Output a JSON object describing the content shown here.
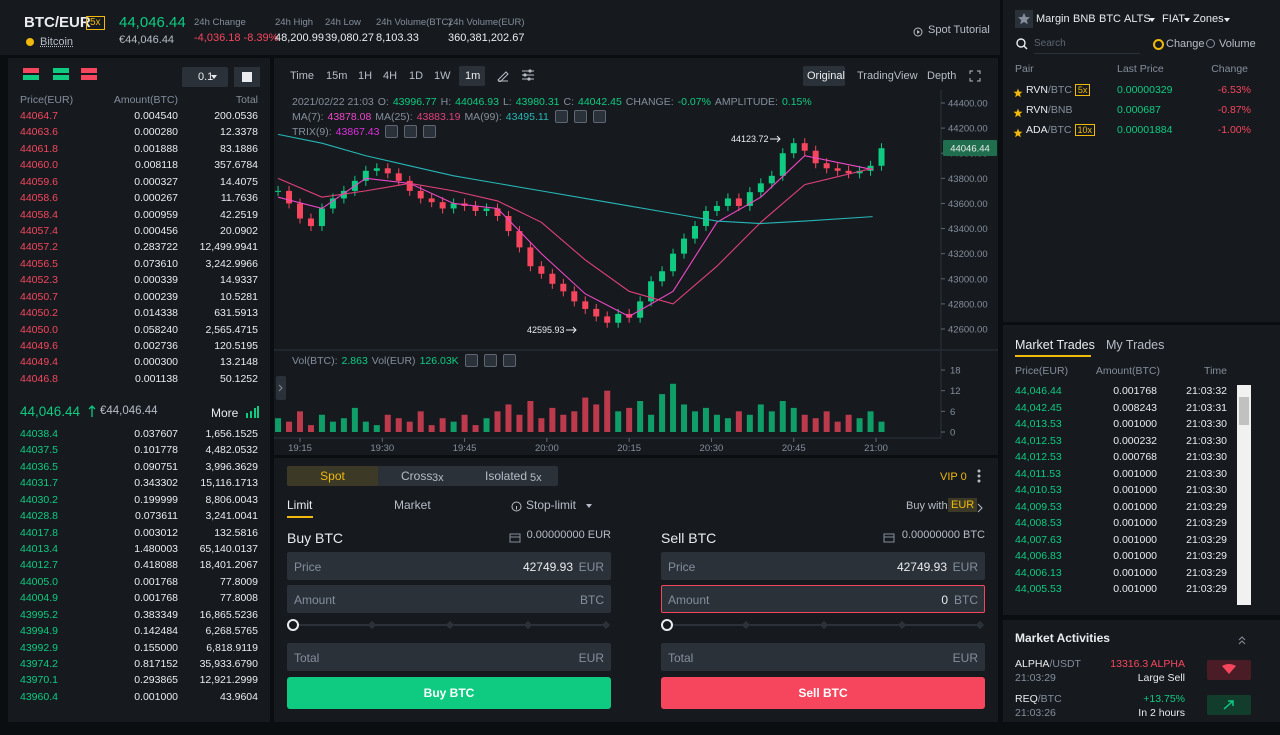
{
  "header": {
    "symbol": "BTC/EUR",
    "leverage": "5x",
    "name": "Bitcoin",
    "price": "44,046.44",
    "price_eur": "€44,046.44",
    "stats": [
      {
        "label": "24h Change",
        "value": "-4,036.18 -8.39%"
      },
      {
        "label": "24h High",
        "value": "48,200.99"
      },
      {
        "label": "24h Low",
        "value": "39,080.27"
      },
      {
        "label": "24h Volume(BTC)",
        "value": "8,103.33"
      },
      {
        "label": "24h Volume(EUR)",
        "value": "360,381,202.67"
      }
    ],
    "tutorial": "Spot Tutorial"
  },
  "orderbook": {
    "precision": "0.1",
    "columns": [
      "Price(EUR)",
      "Amount(BTC)",
      "Total"
    ],
    "asks": [
      [
        "44064.7",
        "0.004540",
        "200.0536"
      ],
      [
        "44063.6",
        "0.000280",
        "12.3378"
      ],
      [
        "44061.8",
        "0.001888",
        "83.1886"
      ],
      [
        "44060.0",
        "0.008118",
        "357.6784"
      ],
      [
        "44059.6",
        "0.000327",
        "14.4075"
      ],
      [
        "44058.6",
        "0.000267",
        "11.7636"
      ],
      [
        "44058.4",
        "0.000959",
        "42.2519"
      ],
      [
        "44057.4",
        "0.000456",
        "20.0902"
      ],
      [
        "44057.2",
        "0.283722",
        "12,499.9941"
      ],
      [
        "44056.5",
        "0.073610",
        "3,242.9966"
      ],
      [
        "44052.3",
        "0.000339",
        "14.9337"
      ],
      [
        "44050.7",
        "0.000239",
        "10.5281"
      ],
      [
        "44050.2",
        "0.014338",
        "631.5913"
      ],
      [
        "44050.0",
        "0.058240",
        "2,565.4715"
      ],
      [
        "44049.6",
        "0.002736",
        "120.5195"
      ],
      [
        "44049.4",
        "0.000300",
        "13.2148"
      ],
      [
        "44046.8",
        "0.001138",
        "50.1252"
      ]
    ],
    "mid_price": "44,046.44",
    "mid_eur": "€44,046.44",
    "more": "More",
    "bids": [
      [
        "44038.4",
        "0.037607",
        "1,656.1525"
      ],
      [
        "44037.5",
        "0.101778",
        "4,482.0532"
      ],
      [
        "44036.5",
        "0.090751",
        "3,996.3629"
      ],
      [
        "44031.7",
        "0.343302",
        "15,116.1713"
      ],
      [
        "44030.2",
        "0.199999",
        "8,806.0043"
      ],
      [
        "44028.8",
        "0.073611",
        "3,241.0041"
      ],
      [
        "44017.8",
        "0.003012",
        "132.5816"
      ],
      [
        "44013.4",
        "1.480003",
        "65,140.0137"
      ],
      [
        "44012.7",
        "0.418088",
        "18,401.2067"
      ],
      [
        "44005.0",
        "0.001768",
        "77.8009"
      ],
      [
        "44004.9",
        "0.001768",
        "77.8008"
      ],
      [
        "43995.2",
        "0.383349",
        "16,865.5236"
      ],
      [
        "43994.9",
        "0.142484",
        "6,268.5765"
      ],
      [
        "43992.9",
        "0.155000",
        "6,818.9119"
      ],
      [
        "43974.2",
        "0.817152",
        "35,933.6790"
      ],
      [
        "43970.1",
        "0.293865",
        "12,921.2999"
      ],
      [
        "43960.4",
        "0.001000",
        "43.9604"
      ]
    ]
  },
  "chart": {
    "intervals": [
      "Time",
      "15m",
      "1H",
      "4H",
      "1D",
      "1W",
      "1m"
    ],
    "views": [
      "Original",
      "TradingView",
      "Depth"
    ],
    "info": {
      "date": "2021/02/22 21:03",
      "fields": [
        {
          "label": "O:",
          "value": "43996.77"
        },
        {
          "label": "H:",
          "value": "44046.93"
        },
        {
          "label": "L:",
          "value": "43980.31"
        },
        {
          "label": "C:",
          "value": "44042.45"
        },
        {
          "label": "CHANGE:",
          "value": "-0.07%"
        },
        {
          "label": "AMPLITUDE:",
          "value": "0.15%"
        }
      ]
    },
    "ma": [
      {
        "label": "MA(7):",
        "value": "43878.08",
        "color": "#f048c8",
        "values": [
          43650,
          43560,
          43800,
          43760,
          43600,
          43560,
          43200,
          42880,
          42700,
          42900,
          43450,
          43650,
          43980,
          43870
        ]
      },
      {
        "label": "MA(25):",
        "value": "43883.19",
        "color": "#e0407a",
        "values": [
          43800,
          43650,
          43700,
          43760,
          43700,
          43620,
          43450,
          43150,
          42900,
          42800,
          43100,
          43450,
          43750,
          43880
        ]
      },
      {
        "label": "MA(99):",
        "value": "43495.11",
        "color": "#26b6b6",
        "values": [
          44150,
          44080,
          43980,
          43900,
          43820,
          43760,
          43700,
          43640,
          43580,
          43520,
          43460,
          43440,
          43460,
          43495
        ]
      }
    ],
    "trix": {
      "label": "TRIX(9):",
      "value": "43867.43",
      "color": "#e02ee0"
    },
    "closes": [
      43700,
      43600,
      43480,
      43420,
      43560,
      43640,
      43700,
      43780,
      43860,
      43880,
      43840,
      43780,
      43700,
      43640,
      43610,
      43560,
      43600,
      43580,
      43540,
      43560,
      43500,
      43380,
      43250,
      43100,
      43040,
      42960,
      42900,
      42820,
      42760,
      42700,
      42650,
      42720,
      42690,
      42820,
      42980,
      43060,
      43200,
      43320,
      43420,
      43540,
      43580,
      43640,
      43580,
      43690,
      43760,
      43820,
      44000,
      44080,
      44020,
      43920,
      43880,
      43860,
      43840,
      43860,
      43900,
      44040
    ],
    "yticks": [
      {
        "value": 44400,
        "label": "44400.00"
      },
      {
        "value": 44200,
        "label": "44200.00"
      },
      {
        "value": 44000,
        "label": "44000.00"
      },
      {
        "value": 43800,
        "label": "43800.00"
      },
      {
        "value": 43600,
        "label": "43600.00"
      },
      {
        "value": 43400,
        "label": "43400.00"
      },
      {
        "value": 43200,
        "label": "43200.00"
      },
      {
        "value": 43000,
        "label": "43000.00"
      },
      {
        "value": 42800,
        "label": "42800.00"
      },
      {
        "value": 42600,
        "label": "42600.00"
      }
    ],
    "last_price": "44046.44",
    "high_label": "44123.72",
    "low_label": "42595.93",
    "volume": {
      "label": "Vol(BTC):",
      "value": "2.863",
      "label2": "Vol(EUR)",
      "value2": "126.03K",
      "values": [
        4,
        3,
        6,
        2,
        5,
        3,
        4,
        7,
        3,
        2,
        5,
        4,
        3,
        6,
        2,
        4,
        3,
        5,
        2,
        4,
        6,
        8,
        5,
        9,
        4,
        7,
        5,
        6,
        10,
        8,
        12,
        6,
        7,
        9,
        5,
        11,
        14,
        8,
        6,
        7,
        5,
        4,
        6,
        5,
        8,
        6,
        9,
        7,
        5,
        4,
        6,
        3,
        5,
        4,
        6,
        3
      ],
      "yticks": [
        0,
        6,
        12,
        18
      ]
    },
    "xticks": [
      "19:15",
      "19:30",
      "19:45",
      "20:00",
      "20:15",
      "20:30",
      "20:45",
      "21:00"
    ]
  },
  "order": {
    "tabs": [
      "Spot",
      "Cross",
      "3x",
      "Isolated",
      "5x"
    ],
    "vip": "VIP 0",
    "modes": [
      "Limit",
      "Market",
      "Stop-limit"
    ],
    "buy_with": "Buy with",
    "buy_with_currency": "EUR",
    "buy": {
      "title": "Buy BTC",
      "balance": "0.00000000 EUR",
      "price_label": "Price",
      "price": "42749.93",
      "price_unit": "EUR",
      "amount_label": "Amount",
      "amount_unit": "BTC",
      "total_label": "Total",
      "total_unit": "EUR",
      "button": "Buy BTC"
    },
    "sell": {
      "title": "Sell BTC",
      "balance": "0.00000000 BTC",
      "price_label": "Price",
      "price": "42749.93",
      "price_unit": "EUR",
      "amount_label": "Amount",
      "amount": "0",
      "amount_unit": "BTC",
      "total_label": "Total",
      "total_unit": "EUR",
      "button": "Sell BTC"
    }
  },
  "markets": {
    "tabs": [
      "Margin",
      "BNB",
      "BTC",
      "ALTS",
      "FIAT",
      "Zones"
    ],
    "search": "Search",
    "sort_options": [
      "Change",
      "Volume"
    ],
    "columns": [
      "Pair",
      "Last Price",
      "Change"
    ],
    "rows": [
      {
        "base": "RVN",
        "quote": "/BTC",
        "leverage": "5x",
        "price": "0.00000329",
        "change": "-6.53%"
      },
      {
        "base": "RVN",
        "quote": "/BNB",
        "price": "0.000687",
        "change": "-0.87%"
      },
      {
        "base": "ADA",
        "quote": "/BTC",
        "leverage": "10x",
        "price": "0.00001884",
        "change": "-1.00%"
      }
    ]
  },
  "trades": {
    "tabs": [
      "Market Trades",
      "My Trades"
    ],
    "columns": [
      "Price(EUR)",
      "Amount(BTC)",
      "Time"
    ],
    "rows": [
      [
        "44,046.44",
        "0.001768",
        "21:03:32"
      ],
      [
        "44,042.45",
        "0.008243",
        "21:03:31"
      ],
      [
        "44,013.53",
        "0.001000",
        "21:03:30"
      ],
      [
        "44,012.53",
        "0.000232",
        "21:03:30"
      ],
      [
        "44,012.53",
        "0.000768",
        "21:03:30"
      ],
      [
        "44,011.53",
        "0.001000",
        "21:03:30"
      ],
      [
        "44,010.53",
        "0.001000",
        "21:03:30"
      ],
      [
        "44,009.53",
        "0.001000",
        "21:03:29"
      ],
      [
        "44,008.53",
        "0.001000",
        "21:03:29"
      ],
      [
        "44,007.63",
        "0.001000",
        "21:03:29"
      ],
      [
        "44,006.83",
        "0.001000",
        "21:03:29"
      ],
      [
        "44,006.13",
        "0.001000",
        "21:03:29"
      ],
      [
        "44,005.53",
        "0.001000",
        "21:03:29"
      ]
    ]
  },
  "activities": {
    "title": "Market Activities",
    "rows": [
      {
        "base": "ALPHA",
        "quote": "/USDT",
        "time": "21:03:29",
        "detail": "13316.3 ALPHA",
        "kind": "Large Sell"
      },
      {
        "base": "REQ",
        "quote": "/BTC",
        "time": "21:03:26",
        "detail": "+13.75%",
        "kind": "In 2 hours"
      }
    ]
  }
}
